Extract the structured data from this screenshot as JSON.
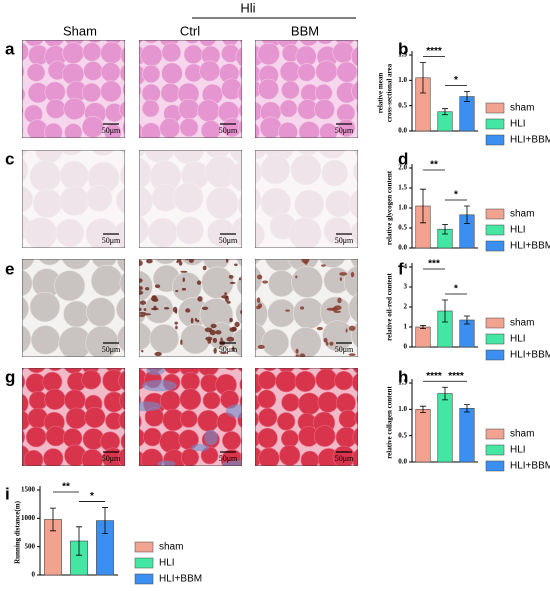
{
  "panel_labels": [
    "a",
    "b",
    "c",
    "d",
    "e",
    "f",
    "g",
    "h",
    "i"
  ],
  "histology": {
    "group": "Hli",
    "columns": [
      "Sham",
      "Ctrl",
      "BBM"
    ],
    "scale_bar": "50μm"
  },
  "chart_data": [
    {
      "type": "bar",
      "y_label": [
        "relative mean",
        "cross-sectional area"
      ],
      "categories": [
        "sham",
        "HLI",
        "HLI+BBM"
      ],
      "colors": [
        "#f2a390",
        "#43e6a3",
        "#3a8ff0"
      ],
      "values": [
        1.05,
        0.38,
        0.68
      ],
      "errors": [
        0.3,
        0.06,
        0.1
      ],
      "annotations": [
        "****",
        "*"
      ],
      "ylim": [
        0,
        1.5
      ],
      "yticks": [
        {
          "value": 0,
          "label": "0.0"
        },
        0.5,
        {
          "value": 1,
          "label": "1.0"
        },
        1.5
      ]
    },
    {
      "type": "bar",
      "y_label": [
        "relative glycogen content"
      ],
      "categories": [
        "sham",
        "HLI",
        "HLI+BBM"
      ],
      "colors": [
        "#f2a390",
        "#43e6a3",
        "#3a8ff0"
      ],
      "values": [
        1.05,
        0.47,
        0.83
      ],
      "errors": [
        0.42,
        0.12,
        0.22
      ],
      "annotations": [
        "**",
        "*"
      ],
      "ylim": [
        0,
        2
      ],
      "yticks": [
        {
          "value": 0,
          "label": "0.0"
        },
        0.5,
        {
          "value": 1,
          "label": "1.0"
        },
        1.5,
        {
          "value": 2,
          "label": "2.0"
        }
      ]
    },
    {
      "type": "bar",
      "y_label": [
        "relative oil-red content"
      ],
      "categories": [
        "sham",
        "HLI",
        "HLI+BBM"
      ],
      "colors": [
        "#f2a390",
        "#43e6a3",
        "#3a8ff0"
      ],
      "values": [
        1.0,
        1.8,
        1.35
      ],
      "errors": [
        0.08,
        0.55,
        0.2
      ],
      "annotations": [
        "***",
        "*"
      ],
      "ylim": [
        0,
        4
      ],
      "yticks": [
        0,
        1,
        2,
        3,
        4
      ]
    },
    {
      "type": "bar",
      "y_label": [
        "relative collagen content"
      ],
      "categories": [
        "sham",
        "HLI",
        "HLI+BBM"
      ],
      "colors": [
        "#f2a390",
        "#43e6a3",
        "#3a8ff0"
      ],
      "values": [
        1.0,
        1.3,
        1.02
      ],
      "errors": [
        0.06,
        0.12,
        0.07
      ],
      "annotations": [
        "****",
        "****"
      ],
      "ylim": [
        0,
        1.5
      ],
      "yticks": [
        {
          "value": 0,
          "label": "0.0"
        },
        0.5,
        {
          "value": 1,
          "label": "1.0"
        },
        1.5
      ]
    },
    {
      "type": "bar",
      "y_label": [
        "Running distance(m)"
      ],
      "categories": [
        "sham",
        "HLI",
        "HLI+BBM"
      ],
      "colors": [
        "#f2a390",
        "#43e6a3",
        "#3a8ff0"
      ],
      "values": [
        980,
        600,
        960
      ],
      "errors": [
        200,
        250,
        230
      ],
      "annotations": [
        "**",
        "*"
      ],
      "ylim": [
        0,
        1500
      ],
      "yticks": [
        0,
        500,
        1000,
        1500
      ]
    }
  ]
}
